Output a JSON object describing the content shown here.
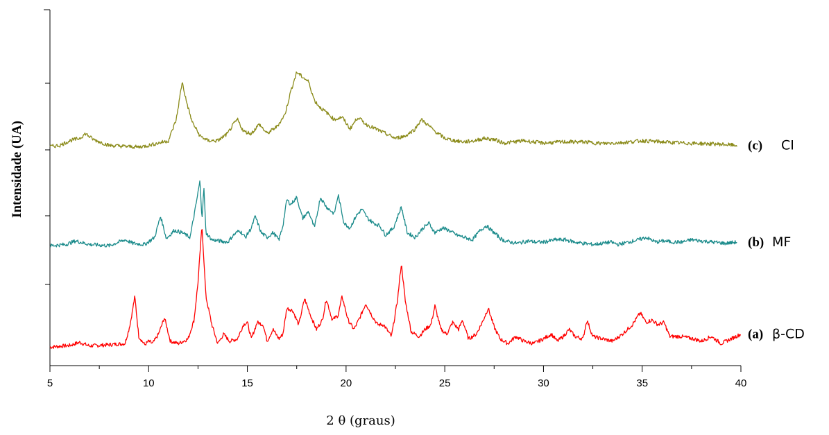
{
  "chart_data": {
    "type": "line",
    "xlabel": "2 θ (graus)",
    "ylabel": "Intensidade (UA)",
    "xlim": [
      5,
      40
    ],
    "x_ticks": [
      "5",
      "10",
      "15",
      "20",
      "25",
      "30",
      "35",
      "40"
    ],
    "y_ticks_labeled": false,
    "grid": false,
    "legend": "inline-right",
    "series": [
      {
        "tag": "(a)",
        "name": "β-CD",
        "color": "#ff0000",
        "offset": 0,
        "x": [
          5.0,
          6.0,
          6.5,
          7.0,
          8.0,
          8.8,
          9.0,
          9.1,
          9.3,
          9.5,
          9.8,
          10.0,
          10.2,
          10.5,
          10.8,
          11.1,
          11.5,
          12.0,
          12.3,
          12.5,
          12.7,
          12.9,
          13.2,
          13.5,
          13.8,
          14.1,
          14.5,
          14.8,
          15.0,
          15.2,
          15.5,
          15.8,
          16.0,
          16.3,
          16.6,
          16.8,
          17.0,
          17.3,
          17.6,
          17.9,
          18.2,
          18.5,
          18.8,
          19.0,
          19.3,
          19.6,
          19.8,
          20.1,
          20.4,
          20.7,
          21.0,
          21.3,
          21.6,
          21.9,
          22.3,
          22.6,
          22.8,
          23.0,
          23.3,
          23.7,
          24.0,
          24.3,
          24.5,
          24.8,
          25.1,
          25.4,
          25.7,
          25.9,
          26.2,
          26.6,
          26.9,
          27.2,
          27.5,
          27.8,
          28.2,
          28.6,
          29.0,
          29.5,
          30.0,
          30.4,
          30.7,
          31.0,
          31.3,
          31.6,
          32.0,
          32.2,
          32.5,
          33.0,
          33.5,
          34.0,
          34.5,
          34.9,
          35.2,
          35.5,
          35.8,
          36.1,
          36.4,
          37.0,
          37.6,
          38.0,
          38.5,
          39.0,
          39.5,
          40.0
        ],
        "y": [
          0.5,
          1.2,
          2.5,
          1.0,
          1.5,
          2.0,
          8.0,
          12.0,
          22.0,
          5.0,
          1.5,
          3.0,
          2.0,
          6.0,
          13.0,
          3.0,
          2.0,
          4.0,
          12.0,
          28.0,
          52.0,
          22.0,
          10.0,
          2.0,
          6.0,
          3.0,
          4.0,
          10.0,
          11.0,
          4.0,
          11.0,
          10.0,
          3.0,
          8.0,
          4.0,
          6.0,
          17.0,
          16.0,
          10.0,
          21.0,
          14.0,
          8.0,
          12.0,
          21.0,
          12.0,
          14.0,
          22.0,
          12.0,
          8.0,
          13.0,
          19.0,
          14.0,
          10.0,
          10.0,
          5.0,
          20.0,
          36.0,
          20.0,
          7.0,
          5.0,
          8.0,
          10.0,
          18.0,
          8.0,
          6.0,
          11.0,
          8.0,
          12.0,
          4.0,
          6.0,
          11.0,
          17.0,
          9.0,
          4.0,
          2.0,
          5.0,
          3.0,
          2.0,
          4.0,
          6.0,
          3.0,
          5.0,
          8.0,
          5.0,
          4.0,
          12.0,
          5.0,
          4.0,
          3.0,
          6.0,
          10.0,
          15.0,
          11.0,
          12.0,
          10.0,
          11.0,
          5.0,
          5.0,
          4.0,
          3.0,
          5.0,
          2.0,
          4.0,
          6.0
        ]
      },
      {
        "tag": "(b)",
        "name": "MF",
        "color": "#1b8b8b",
        "offset": 43,
        "x": [
          5.0,
          5.8,
          6.3,
          7.0,
          8.0,
          8.8,
          9.2,
          9.8,
          10.3,
          10.6,
          10.9,
          11.3,
          11.7,
          12.1,
          12.4,
          12.6,
          12.7,
          12.8,
          12.9,
          13.2,
          13.6,
          14.0,
          14.3,
          14.6,
          14.9,
          15.2,
          15.4,
          15.7,
          16.0,
          16.3,
          16.6,
          16.8,
          17.0,
          17.2,
          17.5,
          17.8,
          18.1,
          18.4,
          18.7,
          19.0,
          19.4,
          19.6,
          19.9,
          20.2,
          20.5,
          20.8,
          21.1,
          21.4,
          21.7,
          22.0,
          22.4,
          22.8,
          23.1,
          23.5,
          23.9,
          24.2,
          24.5,
          24.9,
          25.2,
          25.6,
          26.0,
          26.4,
          26.8,
          27.1,
          27.5,
          27.9,
          28.3,
          28.7,
          29.2,
          29.6,
          30.0,
          30.6,
          31.1,
          31.6,
          32.0,
          32.5,
          33.0,
          33.4,
          33.8,
          34.3,
          34.8,
          35.2,
          35.7,
          36.1,
          36.6,
          37.0,
          37.5,
          38.0,
          38.6,
          39.2,
          39.8
        ],
        "y": [
          0.5,
          1.0,
          2.5,
          1.0,
          0.5,
          3.0,
          1.5,
          1.0,
          4.0,
          13.0,
          3.5,
          7.0,
          6.0,
          4.0,
          18.0,
          28.0,
          12.0,
          25.0,
          6.0,
          3.0,
          2.5,
          2.0,
          5.0,
          7.0,
          4.0,
          8.0,
          13.0,
          6.0,
          4.0,
          6.0,
          3.0,
          9.0,
          20.0,
          18.0,
          21.0,
          12.0,
          15.0,
          8.0,
          21.0,
          17.0,
          14.0,
          22.0,
          10.0,
          8.0,
          13.0,
          16.0,
          12.0,
          10.0,
          9.0,
          5.0,
          8.0,
          17.0,
          6.0,
          4.0,
          8.0,
          10.0,
          6.0,
          8.0,
          7.0,
          5.0,
          4.0,
          3.0,
          7.0,
          9.0,
          6.0,
          3.0,
          2.0,
          1.5,
          2.5,
          2.0,
          2.0,
          3.0,
          3.0,
          2.0,
          1.5,
          1.0,
          1.5,
          2.0,
          1.0,
          2.0,
          3.0,
          4.0,
          2.0,
          2.5,
          2.0,
          2.0,
          3.0,
          2.5,
          2.0,
          1.5,
          2.0
        ]
      },
      {
        "tag": "(c)",
        "name": "CI",
        "color": "#8b8b1a",
        "offset": 85,
        "x": [
          5.0,
          5.5,
          6.0,
          6.5,
          6.8,
          7.2,
          8.0,
          9.0,
          9.5,
          10.0,
          10.5,
          11.0,
          11.4,
          11.7,
          11.9,
          12.2,
          12.6,
          13.0,
          13.5,
          14.0,
          14.3,
          14.5,
          14.8,
          15.2,
          15.6,
          16.0,
          16.5,
          16.9,
          17.2,
          17.5,
          17.8,
          18.1,
          18.4,
          18.7,
          19.0,
          19.4,
          19.8,
          20.2,
          20.6,
          21.0,
          21.5,
          22.0,
          22.5,
          23.0,
          23.5,
          23.8,
          24.1,
          24.5,
          25.0,
          25.5,
          26.0,
          26.5,
          27.0,
          27.5,
          28.0,
          29.0,
          30.0,
          31.0,
          32.0,
          33.0,
          34.0,
          35.0,
          36.0,
          37.0,
          38.0,
          39.0,
          39.8
        ],
        "y": [
          0.5,
          1.0,
          3.0,
          4.0,
          6.0,
          3.5,
          1.0,
          0.5,
          0.3,
          1.0,
          2.0,
          3.0,
          12.0,
          28.0,
          20.0,
          11.0,
          5.0,
          3.0,
          3.0,
          6.0,
          10.0,
          12.0,
          7.0,
          6.0,
          10.0,
          6.0,
          9.0,
          14.0,
          24.0,
          32.0,
          30.0,
          28.0,
          20.0,
          17.0,
          15.0,
          12.0,
          13.0,
          8.0,
          13.0,
          10.0,
          8.0,
          6.0,
          4.0,
          5.0,
          8.0,
          12.0,
          10.0,
          7.0,
          4.0,
          3.0,
          2.5,
          3.0,
          4.0,
          3.5,
          2.0,
          3.0,
          2.0,
          2.5,
          2.5,
          1.8,
          2.2,
          3.0,
          2.5,
          2.0,
          1.8,
          1.5,
          1.0
        ]
      }
    ]
  }
}
